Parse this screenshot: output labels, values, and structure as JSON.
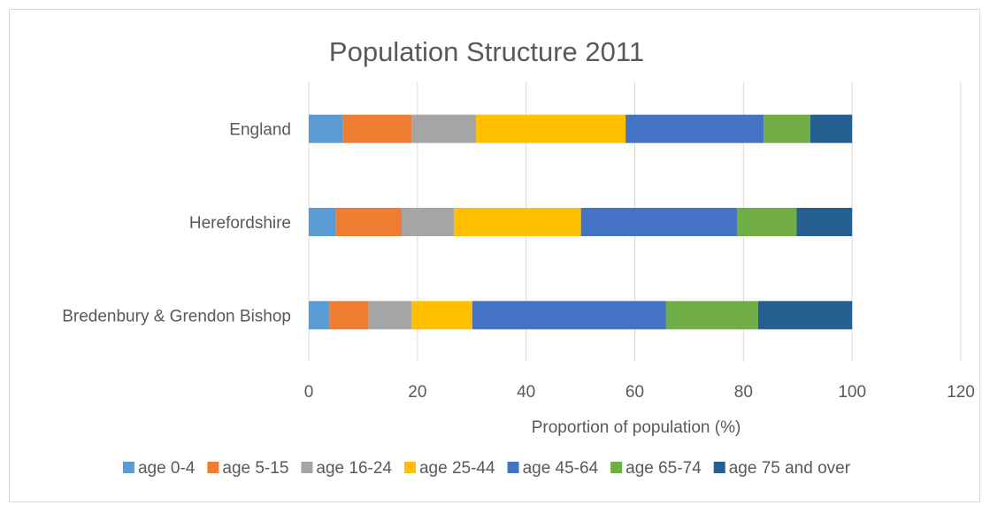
{
  "chart_data": {
    "type": "bar",
    "orientation": "horizontal",
    "stacked": true,
    "title": "Population Structure 2011",
    "xlabel": "Proportion of population (%)",
    "ylabel": "",
    "xlim": [
      0,
      120
    ],
    "xticks": [
      0,
      20,
      40,
      60,
      80,
      100,
      120
    ],
    "grid": true,
    "legend_position": "bottom",
    "categories": [
      "England",
      "Herefordshire",
      "Bredenbury & Grendon Bishop"
    ],
    "series": [
      {
        "name": "age 0-4",
        "color": "#5b9bd5",
        "values": [
          6.3,
          5.0,
          3.8
        ]
      },
      {
        "name": "age 5-15",
        "color": "#ed7d31",
        "values": [
          12.6,
          12.1,
          7.2
        ]
      },
      {
        "name": "age 16-24",
        "color": "#a5a5a5",
        "values": [
          11.9,
          9.6,
          7.9
        ]
      },
      {
        "name": "age 25-44",
        "color": "#ffc000",
        "values": [
          27.5,
          23.4,
          11.2
        ]
      },
      {
        "name": "age 45-64",
        "color": "#4472c4",
        "values": [
          25.4,
          28.7,
          35.6
        ]
      },
      {
        "name": "age 65-74",
        "color": "#70ad47",
        "values": [
          8.6,
          11.0,
          17.0
        ]
      },
      {
        "name": "age 75 and over",
        "color": "#255e91",
        "values": [
          7.7,
          10.2,
          17.3
        ]
      }
    ]
  }
}
